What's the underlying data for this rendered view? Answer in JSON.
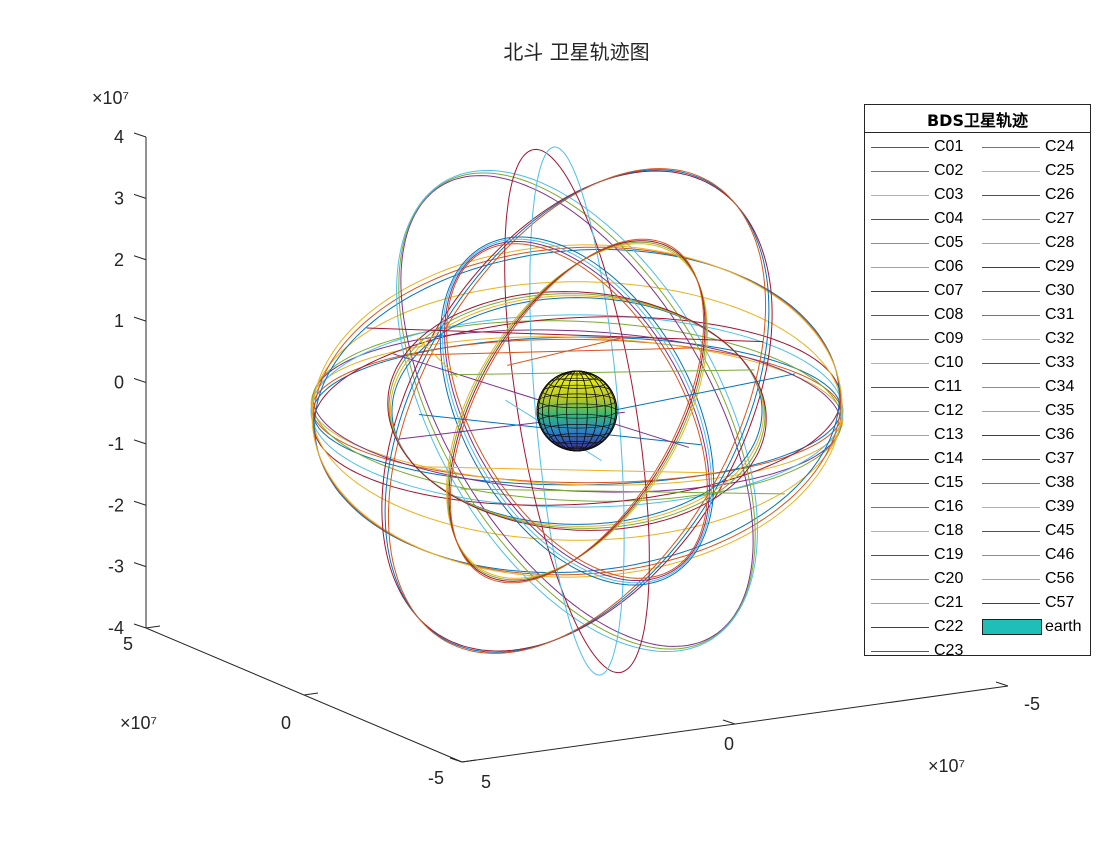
{
  "chart_data": {
    "type": "line",
    "title": "北斗 卫星轨迹图",
    "axes": {
      "z": {
        "ticks": [
          "4",
          "3",
          "2",
          "1",
          "0",
          "-1",
          "-2",
          "-3",
          "-4"
        ],
        "exponent": "×10⁷",
        "lim": [
          -40000000,
          40000000
        ]
      },
      "y": {
        "ticks": [
          "5",
          "0",
          "-5"
        ],
        "exponent": "×10⁷",
        "lim": [
          -50000000,
          50000000
        ]
      },
      "x": {
        "ticks": [
          "5",
          "0",
          "-5"
        ],
        "exponent": "×10⁷",
        "lim": [
          -50000000,
          50000000
        ]
      }
    },
    "legend": {
      "title": "BDS卫星轨迹",
      "placement": "right",
      "columns": [
        [
          "C01",
          "C02",
          "C03",
          "C04",
          "C05",
          "C06",
          "C07",
          "C08",
          "C09",
          "C10",
          "C11",
          "C12",
          "C13",
          "C14",
          "C15",
          "C16",
          "C18",
          "C19",
          "C20",
          "C21",
          "C22",
          "C23"
        ],
        [
          "C24",
          "C25",
          "C26",
          "C27",
          "C28",
          "C29",
          "C30",
          "C31",
          "C32",
          "C33",
          "C34",
          "C35",
          "C36",
          "C37",
          "C38",
          "C39",
          "C45",
          "C46",
          "C56",
          "C57",
          "earth"
        ]
      ]
    },
    "series_colors": [
      "#0072BD",
      "#D95319",
      "#EDB120",
      "#7E2F8E",
      "#77AC30",
      "#4DBEEE",
      "#A2142F"
    ],
    "earth_color": "#1FBFB8",
    "orbit_groups": [
      {
        "kind": "GEO",
        "radius_m": 42164000,
        "inclination_deg": 0
      },
      {
        "kind": "IGSO",
        "radius_m": 42164000,
        "inclination_deg": 55
      },
      {
        "kind": "MEO",
        "radius_m": 27906000,
        "inclination_deg": 55
      }
    ]
  }
}
